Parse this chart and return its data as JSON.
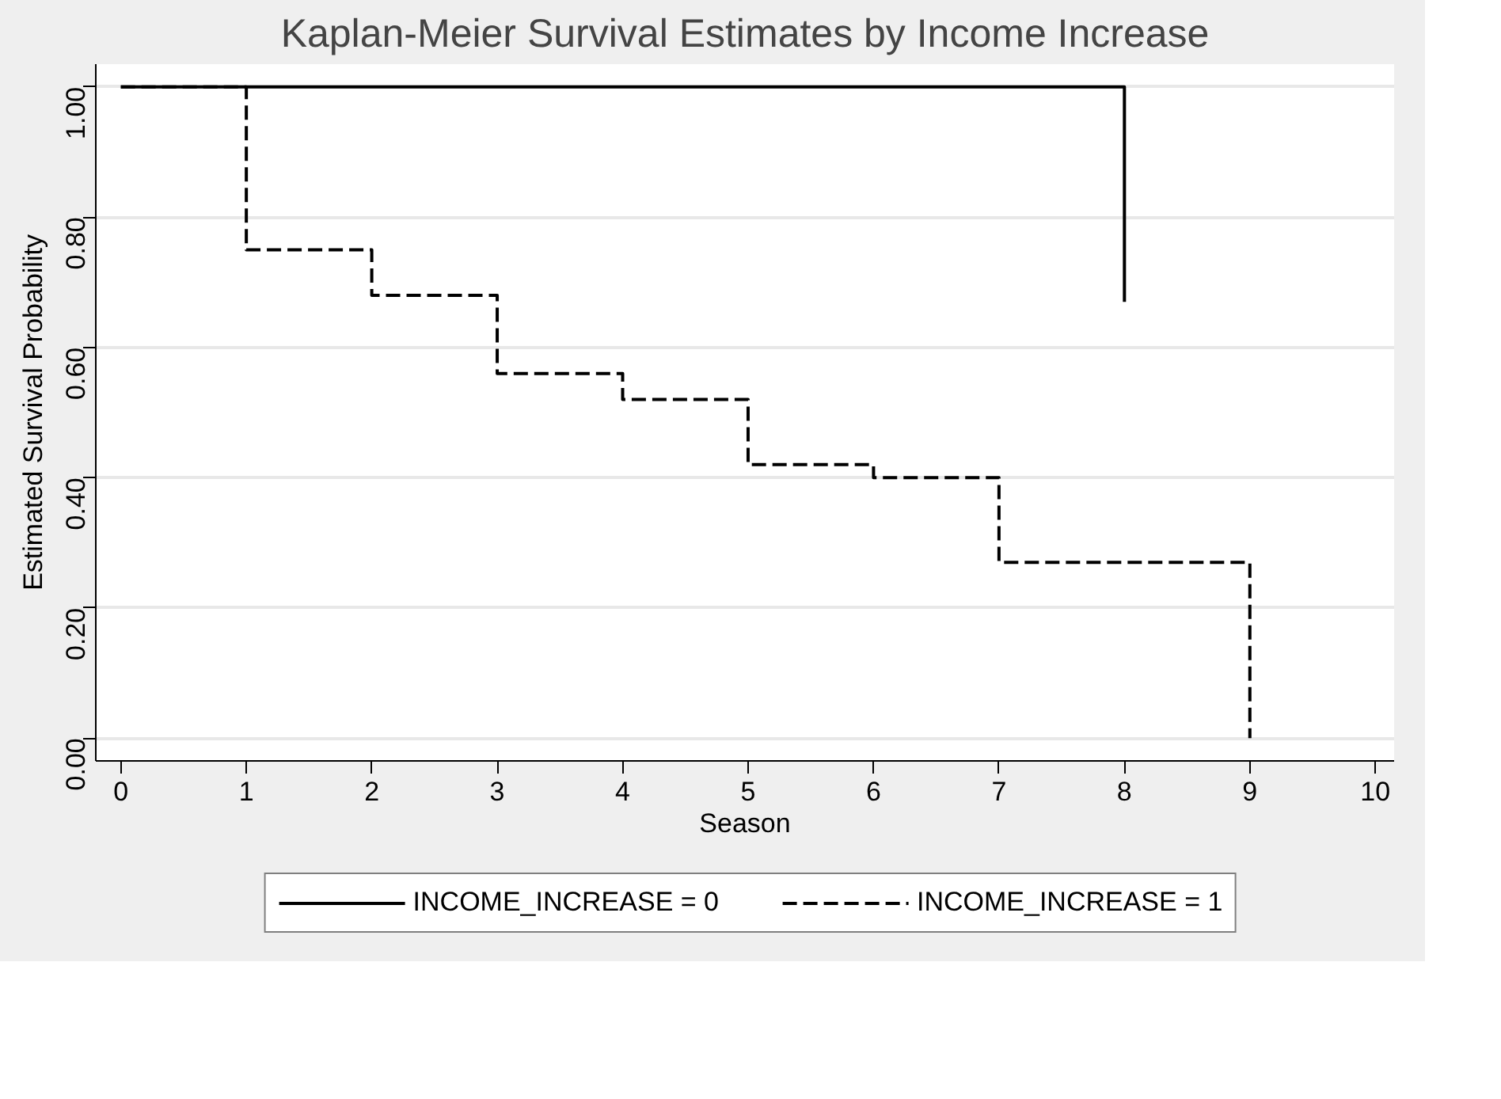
{
  "chart_data": {
    "type": "step",
    "title": "Kaplan-Meier Survival Estimates by Income Increase",
    "xlabel": "Season",
    "ylabel": "Estimated Survival Probability",
    "series": [
      {
        "name": "INCOME_INCREASE = 0",
        "color": "#000000",
        "line_style": "solid",
        "x": [
          0,
          8,
          8
        ],
        "values": [
          1,
          1,
          0.67
        ]
      },
      {
        "name": "INCOME_INCREASE = 1",
        "color": "#000000",
        "line_style": "dashed",
        "x": [
          0,
          1,
          2,
          3,
          4,
          5,
          6,
          7,
          9
        ],
        "values": [
          1,
          0.75,
          0.68,
          0.56,
          0.52,
          0.42,
          0.4,
          0.27,
          0
        ]
      }
    ],
    "xlim": [
      -0.2,
      10.15
    ],
    "ylim": [
      -0.035,
      1.035
    ],
    "xticks": [
      0,
      1,
      2,
      3,
      4,
      5,
      6,
      7,
      8,
      9,
      10
    ],
    "yticks": [
      {
        "value": 0,
        "label": "0.00"
      },
      {
        "value": 0.2,
        "label": "0.20"
      },
      {
        "value": 0.4,
        "label": "0.40"
      },
      {
        "value": 0.6,
        "label": "0.60"
      },
      {
        "value": 0.8,
        "label": "0.80"
      },
      {
        "value": 1,
        "label": "1.00"
      }
    ],
    "grid": "y",
    "legend": "bottom",
    "marker": "none"
  }
}
